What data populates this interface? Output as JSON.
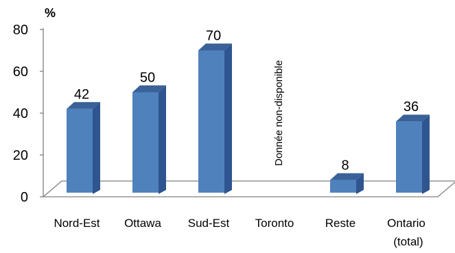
{
  "chart_data": {
    "type": "bar",
    "unit_label": "%",
    "categories": [
      "Nord-Est",
      "Ottawa",
      "Sud-Est",
      "Toronto",
      "Reste",
      "Ontario (total)"
    ],
    "values": [
      42,
      50,
      70,
      null,
      8,
      36
    ],
    "data_labels": [
      "42",
      "50",
      "70",
      "",
      "8",
      "36"
    ],
    "missing_note": "Donnée non-disponible",
    "y_ticks": [
      0,
      20,
      40,
      60,
      80
    ],
    "ylim": [
      0,
      80
    ],
    "grid": false,
    "legend": false,
    "three_d": true,
    "colors": {
      "bar_front": "#4F81BD",
      "bar_side": "#2F5590",
      "bar_top": "#3A6299",
      "axis": "#7F7F7F"
    }
  }
}
